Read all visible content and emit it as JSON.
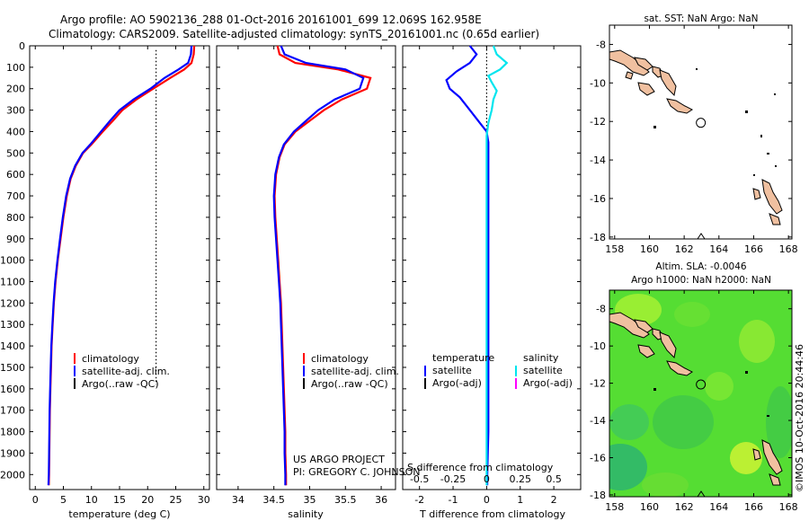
{
  "header": {
    "line1": "Argo profile: AO 5902136_288 01-Oct-2016 20161001_699 12.069S 162.958E",
    "line2": "Climatology: CARS2009. Satellite-adjusted climatology: synTS_20161001.nc (0.65d earlier)"
  },
  "colors": {
    "climatology": "#ff0000",
    "satellite": "#0000ff",
    "argo": "#000000",
    "salinity_satellite": "#00e5ee",
    "salinity_argo": "#ff00ff",
    "land": "#f0c0a0",
    "ssh_field": "#55dd33"
  },
  "pressure_axis": {
    "ticks": [
      "0",
      "100",
      "200",
      "300",
      "400",
      "500",
      "600",
      "700",
      "800",
      "900",
      "1000",
      "1100",
      "1200",
      "1300",
      "1400",
      "1500",
      "1600",
      "1700",
      "1800",
      "1900",
      "2000"
    ],
    "range": [
      0,
      2070
    ]
  },
  "chart_data": [
    {
      "type": "line",
      "id": "temperature",
      "xlabel": "temperature (deg C)",
      "xlim": [
        -1,
        31
      ],
      "xticks": [
        "0",
        "5",
        "10",
        "15",
        "20",
        "25",
        "30"
      ],
      "ylim": [
        0,
        2070
      ],
      "legend": [
        "climatology",
        "satellite-adj. clim.",
        "Argo(..raw -QC)"
      ],
      "reference_line_x": 21.5,
      "series": [
        {
          "name": "climatology",
          "color": "#ff0000",
          "points": [
            [
              28.3,
              0
            ],
            [
              28.2,
              40
            ],
            [
              27.8,
              80
            ],
            [
              26.5,
              110
            ],
            [
              24,
              150
            ],
            [
              21,
              200
            ],
            [
              18,
              250
            ],
            [
              15.5,
              300
            ],
            [
              13.8,
              350
            ],
            [
              12,
              400
            ],
            [
              10,
              460
            ],
            [
              8.5,
              500
            ],
            [
              7.2,
              560
            ],
            [
              6.3,
              620
            ],
            [
              5.6,
              700
            ],
            [
              5,
              800
            ],
            [
              4.5,
              900
            ],
            [
              4,
              1000
            ],
            [
              3.6,
              1100
            ],
            [
              3.3,
              1200
            ],
            [
              3.1,
              1300
            ],
            [
              2.9,
              1400
            ],
            [
              2.8,
              1500
            ],
            [
              2.7,
              1600
            ],
            [
              2.6,
              1700
            ],
            [
              2.55,
              1800
            ],
            [
              2.5,
              1900
            ],
            [
              2.45,
              2000
            ],
            [
              2.4,
              2050
            ]
          ]
        },
        {
          "name": "satellite-adj. clim.",
          "color": "#0000ff",
          "points": [
            [
              27.8,
              0
            ],
            [
              27.7,
              40
            ],
            [
              27.2,
              80
            ],
            [
              25.5,
              110
            ],
            [
              23,
              150
            ],
            [
              20.5,
              200
            ],
            [
              17.5,
              250
            ],
            [
              15,
              300
            ],
            [
              13.3,
              350
            ],
            [
              11.7,
              400
            ],
            [
              9.8,
              460
            ],
            [
              8.4,
              500
            ],
            [
              7.1,
              560
            ],
            [
              6.2,
              620
            ],
            [
              5.5,
              700
            ],
            [
              4.9,
              800
            ],
            [
              4.4,
              900
            ],
            [
              3.95,
              1000
            ],
            [
              3.55,
              1100
            ],
            [
              3.25,
              1200
            ],
            [
              3.05,
              1300
            ],
            [
              2.85,
              1400
            ],
            [
              2.75,
              1500
            ],
            [
              2.65,
              1600
            ],
            [
              2.55,
              1700
            ],
            [
              2.5,
              1800
            ],
            [
              2.45,
              1900
            ],
            [
              2.4,
              2000
            ],
            [
              2.35,
              2050
            ]
          ]
        }
      ]
    },
    {
      "type": "line",
      "id": "salinity",
      "xlabel": "salinity",
      "xlim": [
        33.7,
        36.2
      ],
      "xticks": [
        "34",
        "34.5",
        "35",
        "35.5",
        "36"
      ],
      "ylim": [
        0,
        2070
      ],
      "legend": [
        "climatology",
        "satellite-adj. clim.",
        "Argo(..raw -QC)"
      ],
      "annotation": [
        "US ARGO PROJECT",
        "PI: GREGORY C. JOHNSON"
      ],
      "series": [
        {
          "name": "climatology",
          "color": "#ff0000",
          "points": [
            [
              34.55,
              0
            ],
            [
              34.58,
              40
            ],
            [
              34.8,
              80
            ],
            [
              35.4,
              110
            ],
            [
              35.85,
              150
            ],
            [
              35.8,
              200
            ],
            [
              35.45,
              250
            ],
            [
              35.2,
              300
            ],
            [
              35.0,
              350
            ],
            [
              34.8,
              400
            ],
            [
              34.65,
              460
            ],
            [
              34.58,
              520
            ],
            [
              34.53,
              600
            ],
            [
              34.51,
              700
            ],
            [
              34.52,
              800
            ],
            [
              34.54,
              900
            ],
            [
              34.56,
              1000
            ],
            [
              34.58,
              1100
            ],
            [
              34.6,
              1200
            ],
            [
              34.61,
              1300
            ],
            [
              34.62,
              1400
            ],
            [
              34.63,
              1500
            ],
            [
              34.64,
              1600
            ],
            [
              34.65,
              1700
            ],
            [
              34.66,
              1800
            ],
            [
              34.66,
              1900
            ],
            [
              34.67,
              2000
            ],
            [
              34.67,
              2050
            ]
          ]
        },
        {
          "name": "satellite-adj. clim.",
          "color": "#0000ff",
          "points": [
            [
              34.6,
              0
            ],
            [
              34.65,
              40
            ],
            [
              34.95,
              80
            ],
            [
              35.5,
              110
            ],
            [
              35.75,
              150
            ],
            [
              35.7,
              200
            ],
            [
              35.35,
              250
            ],
            [
              35.12,
              300
            ],
            [
              34.95,
              350
            ],
            [
              34.78,
              400
            ],
            [
              34.64,
              460
            ],
            [
              34.57,
              520
            ],
            [
              34.52,
              600
            ],
            [
              34.5,
              700
            ],
            [
              34.51,
              800
            ],
            [
              34.53,
              900
            ],
            [
              34.55,
              1000
            ],
            [
              34.57,
              1100
            ],
            [
              34.59,
              1200
            ],
            [
              34.6,
              1300
            ],
            [
              34.61,
              1400
            ],
            [
              34.62,
              1500
            ],
            [
              34.63,
              1600
            ],
            [
              34.64,
              1700
            ],
            [
              34.65,
              1800
            ],
            [
              34.65,
              1900
            ],
            [
              34.66,
              2000
            ],
            [
              34.66,
              2050
            ]
          ]
        }
      ]
    },
    {
      "type": "line",
      "id": "difference",
      "xlabel": "T difference from climatology",
      "xlabel_top": "S difference from climatology",
      "xlim": [
        -2.5,
        2.8
      ],
      "xticks": [
        "-2",
        "-1",
        "0",
        "1",
        "2"
      ],
      "xticks_s": [
        "-0.5",
        "-0.25",
        "0",
        "0.25",
        "0.5"
      ],
      "ylim": [
        0,
        2070
      ],
      "legend_left": [
        "temperature",
        "satellite",
        "Argo(-adj)"
      ],
      "legend_right": [
        "salinity",
        "satellite",
        "Argo(-adj)"
      ],
      "series": [
        {
          "name": "temperature satellite",
          "color": "#0000ff",
          "points": [
            [
              -0.5,
              0
            ],
            [
              -0.3,
              40
            ],
            [
              -0.5,
              80
            ],
            [
              -0.9,
              120
            ],
            [
              -1.2,
              160
            ],
            [
              -1.1,
              200
            ],
            [
              -0.8,
              240
            ],
            [
              -0.6,
              280
            ],
            [
              -0.4,
              320
            ],
            [
              -0.2,
              360
            ],
            [
              0,
              400
            ],
            [
              0.05,
              450
            ],
            [
              0.05,
              600
            ],
            [
              0.05,
              800
            ],
            [
              0.05,
              1000
            ],
            [
              0.05,
              1200
            ],
            [
              0.05,
              1400
            ],
            [
              0.05,
              1600
            ],
            [
              0.05,
              1800
            ],
            [
              0.02,
              2000
            ],
            [
              0.02,
              2050
            ]
          ]
        },
        {
          "name": "salinity satellite",
          "color": "#00e5ee",
          "points": [
            [
              0.2,
              0
            ],
            [
              0.3,
              40
            ],
            [
              0.6,
              80
            ],
            [
              0.4,
              110
            ],
            [
              0.05,
              140
            ],
            [
              0.15,
              170
            ],
            [
              0.3,
              210
            ],
            [
              0.2,
              250
            ],
            [
              0.15,
              300
            ],
            [
              0.05,
              360
            ],
            [
              0,
              420
            ],
            [
              0,
              600
            ],
            [
              0,
              800
            ],
            [
              0,
              1000
            ],
            [
              0,
              1200
            ],
            [
              0,
              1400
            ],
            [
              0,
              1600
            ],
            [
              0,
              1800
            ],
            [
              0,
              2000
            ],
            [
              0,
              2050
            ]
          ]
        }
      ]
    }
  ],
  "maps": [
    {
      "id": "sst-map",
      "title": "sat. SST: NaN Argo: NaN",
      "xticks": [
        "158",
        "160",
        "162",
        "164",
        "166",
        "168"
      ],
      "yticks": [
        "-8",
        "-10",
        "-12",
        "-14",
        "-16",
        "-18"
      ],
      "float_lon": 162.958,
      "float_lat": -12.069,
      "filled": false
    },
    {
      "id": "sla-map",
      "title1": "Altim. SLA: -0.0046",
      "title2": "Argo h1000: NaN h2000: NaN",
      "xticks": [
        "158",
        "160",
        "162",
        "164",
        "166",
        "168"
      ],
      "yticks": [
        "-8",
        "-10",
        "-12",
        "-14",
        "-16",
        "-18"
      ],
      "float_lon": 162.958,
      "float_lat": -12.069,
      "filled": true
    }
  ],
  "watermark": "©IMOS 10-Oct-2016 20:44:46"
}
